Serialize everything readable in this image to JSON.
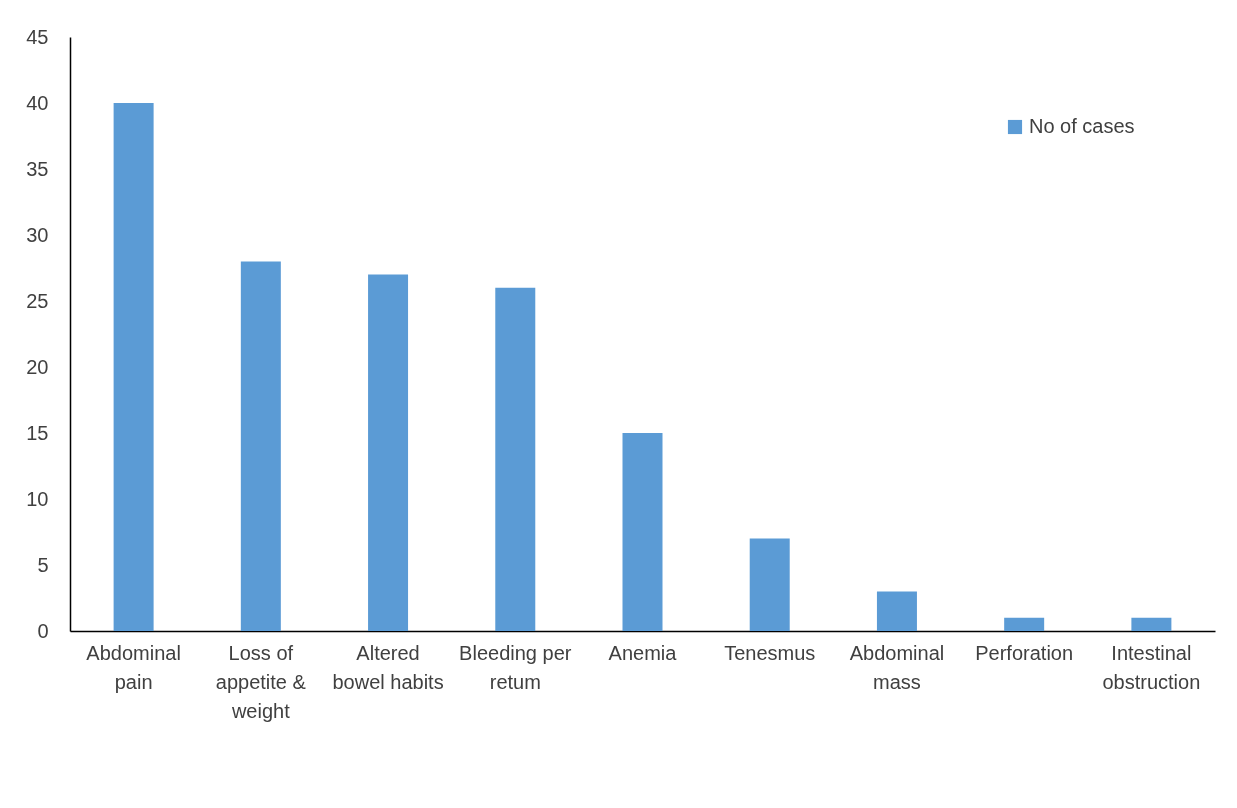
{
  "chart_data": {
    "type": "bar",
    "categories": [
      "Abdominal pain",
      "Loss of appetite & weight",
      "Altered bowel habits",
      "Bleeding per retum",
      "Anemia",
      "Tenesmus",
      "Abdominal mass",
      "Perforation",
      "Intestinal obstruction"
    ],
    "series": [
      {
        "name": "No of cases",
        "color": "#5b9bd5",
        "values": [
          40,
          28,
          27,
          26,
          15,
          7,
          3,
          1,
          1
        ]
      }
    ],
    "ylim": [
      0,
      45
    ],
    "yticks": [
      0,
      5,
      10,
      15,
      20,
      25,
      30,
      35,
      40,
      45
    ],
    "grid": false,
    "legend": "top right"
  }
}
